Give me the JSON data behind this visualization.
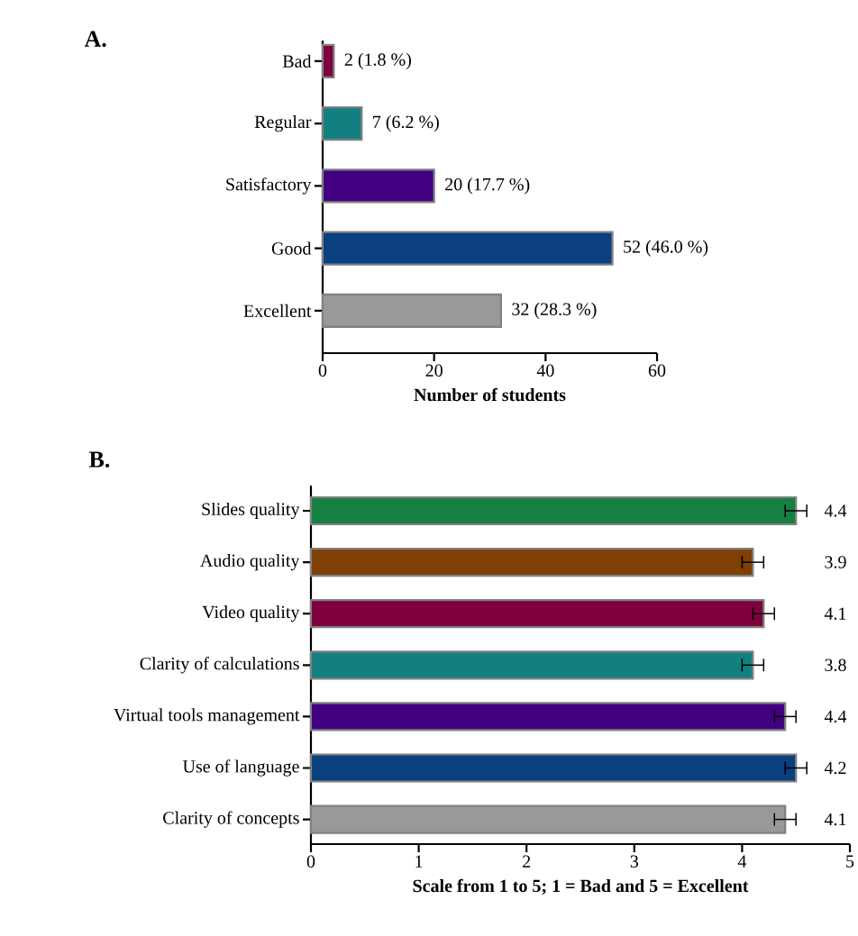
{
  "chart_data": [
    {
      "type": "bar",
      "orientation": "horizontal",
      "title": "A.",
      "xlabel": "Number of students",
      "categories": [
        "Bad",
        "Regular",
        "Satisfactory",
        "Good",
        "Excellent"
      ],
      "values": [
        2,
        7,
        20,
        52,
        32
      ],
      "colors": [
        "#7f003f",
        "#128080",
        "#40007f",
        "#0a3f80",
        "#999999"
      ],
      "value_labels": [
        "2 (1.8 %)",
        "7 (6.2 %)",
        "20 (17.7 %)",
        "52 (46.0 %)",
        "32 (28.3 %)"
      ],
      "xlim": [
        0,
        60
      ],
      "xticks": [
        0,
        20,
        40,
        60
      ]
    },
    {
      "type": "bar",
      "orientation": "horizontal",
      "title": "B.",
      "xlabel": "Scale from 1 to 5; 1 = Bad and 5 = Excellent",
      "categories": [
        "Slides quality",
        "Audio quality",
        "Video quality",
        "Clarity of calculations",
        "Virtual tools management",
        "Use of language",
        "Clarity of concepts"
      ],
      "values": [
        4.5,
        4.1,
        4.2,
        4.1,
        4.4,
        4.5,
        4.4
      ],
      "errors": [
        0.1,
        0.1,
        0.1,
        0.1,
        0.1,
        0.1,
        0.1
      ],
      "colors": [
        "#168040",
        "#7f3f05",
        "#7f003f",
        "#128080",
        "#40007f",
        "#0a3f80",
        "#999999"
      ],
      "annotations": [
        "4.4",
        "3.9",
        "4.1",
        "3.8",
        "4.4",
        "4.2",
        "4.1"
      ],
      "xlim": [
        0,
        5
      ],
      "xticks": [
        0,
        1,
        2,
        3,
        4,
        5
      ]
    }
  ]
}
